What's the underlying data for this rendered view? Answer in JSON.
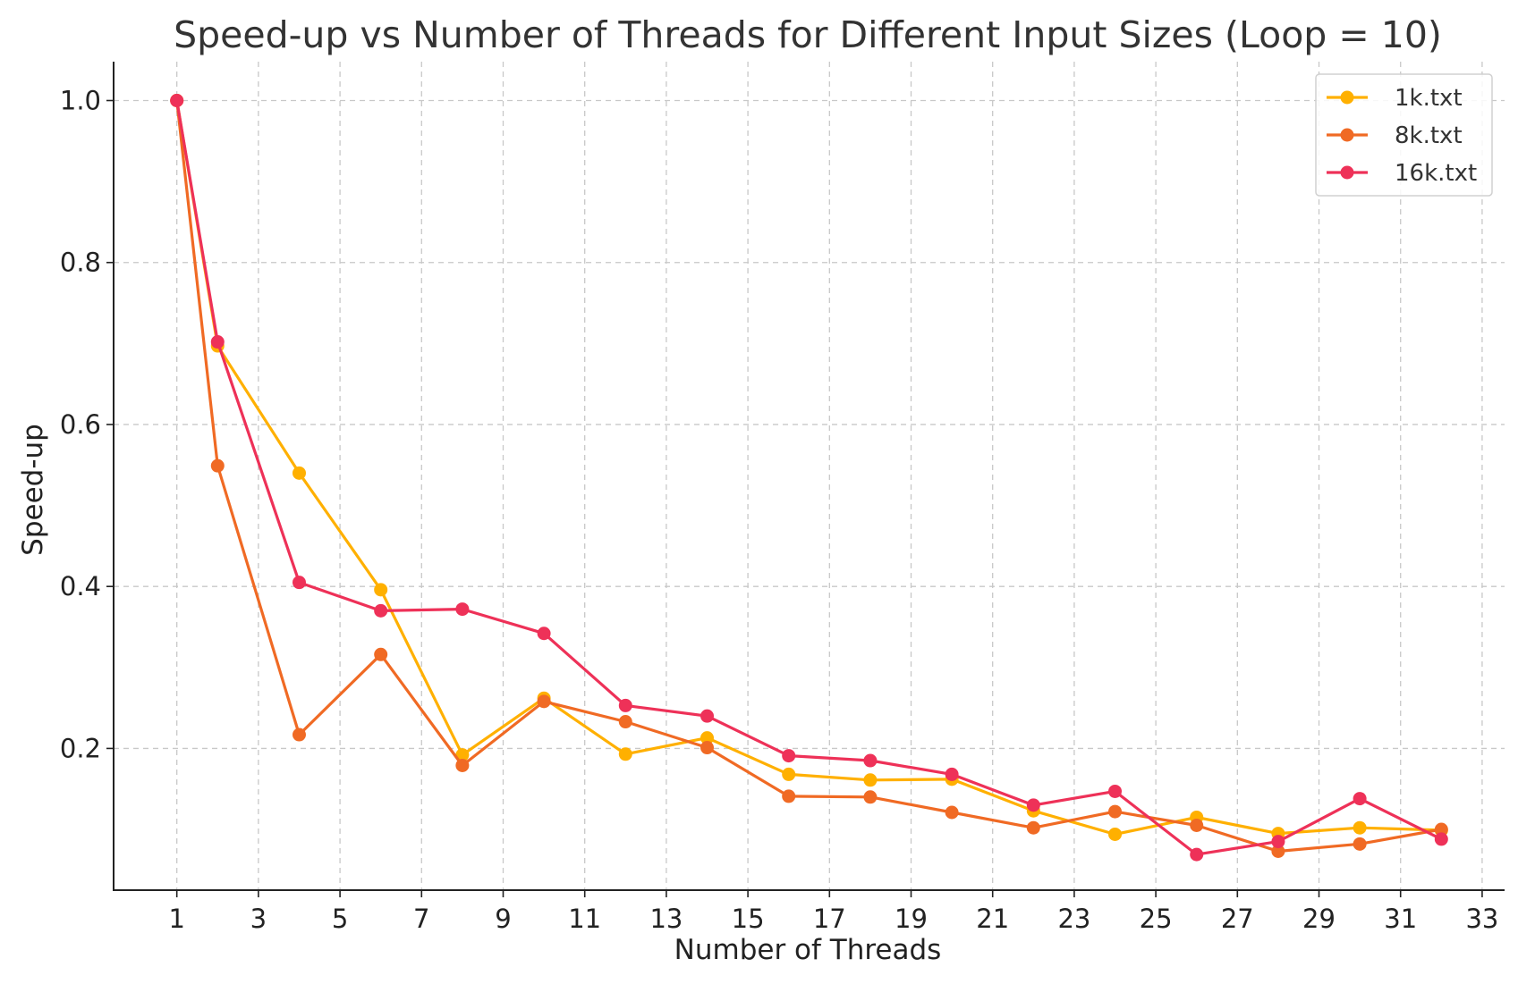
{
  "chart_data": {
    "type": "line",
    "title": "Speed-up vs Number of Threads for Different Input Sizes (Loop = 10)",
    "xlabel": "Number of Threads",
    "ylabel": "Speed-up",
    "xlim": [
      -0.55,
      33.55
    ],
    "ylim": [
      0.025,
      1.048
    ],
    "xticks": [
      1,
      3,
      5,
      7,
      9,
      11,
      13,
      15,
      17,
      19,
      21,
      23,
      25,
      27,
      29,
      31,
      33
    ],
    "yticks": [
      0.2,
      0.4,
      0.6,
      0.8,
      1.0
    ],
    "ytick_labels": [
      "0.2",
      "0.4",
      "0.6",
      "0.8",
      "1.0"
    ],
    "grid": true,
    "legend_position": "top-right",
    "x": [
      1,
      2,
      4,
      6,
      8,
      10,
      12,
      14,
      16,
      18,
      20,
      22,
      24,
      26,
      28,
      30,
      32
    ],
    "series": [
      {
        "name": "1k.txt",
        "color": "#FFB000",
        "values": [
          1.0,
          0.697,
          0.54,
          0.396,
          0.192,
          0.262,
          0.193,
          0.213,
          0.168,
          0.161,
          0.162,
          0.123,
          0.094,
          0.115,
          0.095,
          0.102,
          0.099
        ]
      },
      {
        "name": "8k.txt",
        "color": "#F06A24",
        "values": [
          1.0,
          0.549,
          0.217,
          0.316,
          0.179,
          0.258,
          0.233,
          0.201,
          0.141,
          0.14,
          0.121,
          0.102,
          0.122,
          0.105,
          0.073,
          0.082,
          0.1
        ]
      },
      {
        "name": "16k.txt",
        "color": "#EE3158",
        "values": [
          1.0,
          0.702,
          0.405,
          0.37,
          0.372,
          0.342,
          0.253,
          0.24,
          0.191,
          0.185,
          0.168,
          0.13,
          0.147,
          0.069,
          0.085,
          0.138,
          0.088
        ]
      }
    ]
  }
}
